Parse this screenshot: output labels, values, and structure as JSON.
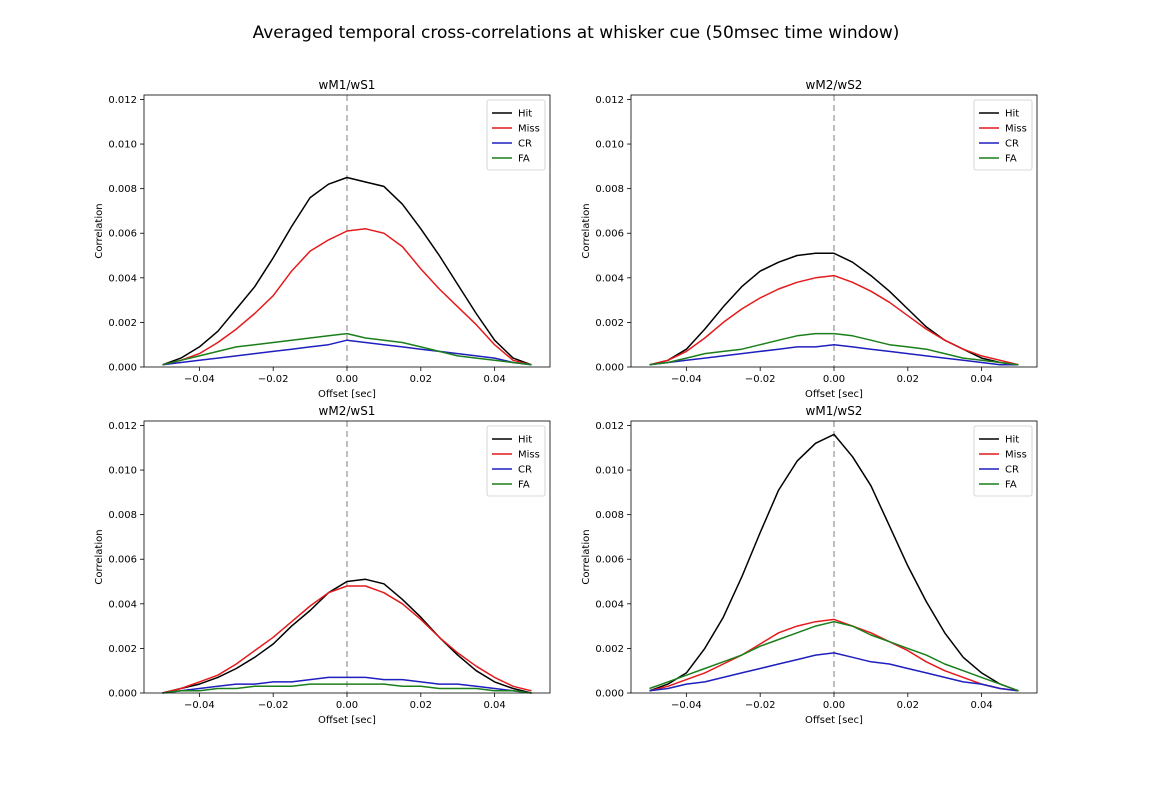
{
  "figure": {
    "title": "Averaged temporal cross-correlations at whisker cue (50msec time window)"
  },
  "colors": {
    "Hit": "#000000",
    "Miss": "#e41a1c",
    "CR": "#1f1fbf",
    "FA": "#1a7f1a",
    "zero_line": "#aaaaaa"
  },
  "chart_data": [
    {
      "type": "line",
      "title": "wM1/wS1",
      "xlabel": "Offset [sec]",
      "ylabel": "Correlation",
      "xlim": [
        -0.055,
        0.055
      ],
      "ylim": [
        0,
        0.0122
      ],
      "xticks": [
        -0.04,
        -0.02,
        0.0,
        0.02,
        0.04
      ],
      "xtick_labels": [
        "−0.04",
        "−0.02",
        "0.00",
        "0.02",
        "0.04"
      ],
      "yticks": [
        0,
        0.002,
        0.004,
        0.006,
        0.008,
        0.01,
        0.012
      ],
      "ytick_labels": [
        "0.000",
        "0.002",
        "0.004",
        "0.006",
        "0.008",
        "0.010",
        "0.012"
      ],
      "zero_line_x": 0,
      "legend": "top-right",
      "x": [
        -0.05,
        -0.045,
        -0.04,
        -0.035,
        -0.03,
        -0.025,
        -0.02,
        -0.015,
        -0.01,
        -0.005,
        0,
        0.005,
        0.01,
        0.015,
        0.02,
        0.025,
        0.03,
        0.035,
        0.04,
        0.045,
        0.05
      ],
      "series": [
        {
          "name": "Hit",
          "values": [
            0.0001,
            0.0004,
            0.0009,
            0.0016,
            0.0026,
            0.0036,
            0.0049,
            0.0063,
            0.0076,
            0.0082,
            0.0085,
            0.0083,
            0.0081,
            0.0073,
            0.0062,
            0.005,
            0.0037,
            0.0024,
            0.0012,
            0.0004,
            0.0001
          ]
        },
        {
          "name": "Miss",
          "values": [
            0.0001,
            0.0003,
            0.0006,
            0.0011,
            0.0017,
            0.0024,
            0.0032,
            0.0043,
            0.0052,
            0.0057,
            0.0061,
            0.0062,
            0.006,
            0.0054,
            0.0044,
            0.0035,
            0.0027,
            0.0019,
            0.001,
            0.0003,
            0.0001
          ]
        },
        {
          "name": "CR",
          "values": [
            0.0001,
            0.0002,
            0.0003,
            0.0004,
            0.0005,
            0.0006,
            0.0007,
            0.0008,
            0.0009,
            0.001,
            0.0012,
            0.0011,
            0.001,
            0.0009,
            0.0008,
            0.0007,
            0.0006,
            0.0005,
            0.0004,
            0.0002,
            0.0001
          ]
        },
        {
          "name": "FA",
          "values": [
            0.0001,
            0.0003,
            0.0005,
            0.0007,
            0.0009,
            0.001,
            0.0011,
            0.0012,
            0.0013,
            0.0014,
            0.0015,
            0.0013,
            0.0012,
            0.0011,
            0.0009,
            0.0007,
            0.0005,
            0.0004,
            0.0003,
            0.0002,
            0.0001
          ]
        }
      ]
    },
    {
      "type": "line",
      "title": "wM2/wS2",
      "xlabel": "Offset [sec]",
      "ylabel": "Correlation",
      "xlim": [
        -0.055,
        0.055
      ],
      "ylim": [
        0,
        0.0122
      ],
      "xticks": [
        -0.04,
        -0.02,
        0.0,
        0.02,
        0.04
      ],
      "xtick_labels": [
        "−0.04",
        "−0.02",
        "0.00",
        "0.02",
        "0.04"
      ],
      "yticks": [
        0,
        0.002,
        0.004,
        0.006,
        0.008,
        0.01,
        0.012
      ],
      "ytick_labels": [
        "0.000",
        "0.002",
        "0.004",
        "0.006",
        "0.008",
        "0.010",
        "0.012"
      ],
      "zero_line_x": 0,
      "legend": "top-right",
      "x": [
        -0.05,
        -0.045,
        -0.04,
        -0.035,
        -0.03,
        -0.025,
        -0.02,
        -0.015,
        -0.01,
        -0.005,
        0,
        0.005,
        0.01,
        0.015,
        0.02,
        0.025,
        0.03,
        0.035,
        0.04,
        0.045,
        0.05
      ],
      "series": [
        {
          "name": "Hit",
          "values": [
            0.0001,
            0.0003,
            0.0008,
            0.0017,
            0.0027,
            0.0036,
            0.0043,
            0.0047,
            0.005,
            0.0051,
            0.0051,
            0.0047,
            0.0041,
            0.0034,
            0.0026,
            0.0018,
            0.0012,
            0.0008,
            0.0004,
            0.0002,
            0.0001
          ]
        },
        {
          "name": "Miss",
          "values": [
            0.0001,
            0.0003,
            0.0007,
            0.0013,
            0.002,
            0.0026,
            0.0031,
            0.0035,
            0.0038,
            0.004,
            0.0041,
            0.0038,
            0.0034,
            0.0029,
            0.0023,
            0.0017,
            0.0012,
            0.0008,
            0.0005,
            0.0003,
            0.0001
          ]
        },
        {
          "name": "CR",
          "values": [
            0.0001,
            0.0002,
            0.0003,
            0.0004,
            0.0005,
            0.0006,
            0.0007,
            0.0008,
            0.0009,
            0.0009,
            0.001,
            0.0009,
            0.0008,
            0.0007,
            0.0006,
            0.0005,
            0.0004,
            0.0003,
            0.0002,
            0.0001,
            0.0001
          ]
        },
        {
          "name": "FA",
          "values": [
            0.0001,
            0.0002,
            0.0004,
            0.0006,
            0.0007,
            0.0008,
            0.001,
            0.0012,
            0.0014,
            0.0015,
            0.0015,
            0.0014,
            0.0012,
            0.001,
            0.0009,
            0.0008,
            0.0006,
            0.0004,
            0.0003,
            0.0002,
            0.0001
          ]
        }
      ]
    },
    {
      "type": "line",
      "title": "wM2/wS1",
      "xlabel": "Offset [sec]",
      "ylabel": "Correlation",
      "xlim": [
        -0.055,
        0.055
      ],
      "ylim": [
        0,
        0.0122
      ],
      "xticks": [
        -0.04,
        -0.02,
        0.0,
        0.02,
        0.04
      ],
      "xtick_labels": [
        "−0.04",
        "−0.02",
        "0.00",
        "0.02",
        "0.04"
      ],
      "yticks": [
        0,
        0.002,
        0.004,
        0.006,
        0.008,
        0.01,
        0.012
      ],
      "ytick_labels": [
        "0.000",
        "0.002",
        "0.004",
        "0.006",
        "0.008",
        "0.010",
        "0.012"
      ],
      "zero_line_x": 0,
      "legend": "top-right",
      "x": [
        -0.05,
        -0.045,
        -0.04,
        -0.035,
        -0.03,
        -0.025,
        -0.02,
        -0.015,
        -0.01,
        -0.005,
        0,
        0.005,
        0.01,
        0.015,
        0.02,
        0.025,
        0.03,
        0.035,
        0.04,
        0.045,
        0.05
      ],
      "series": [
        {
          "name": "Hit",
          "values": [
            0.0,
            0.0002,
            0.0004,
            0.0007,
            0.0011,
            0.0016,
            0.0022,
            0.003,
            0.0037,
            0.0045,
            0.005,
            0.0051,
            0.0049,
            0.0042,
            0.0034,
            0.0025,
            0.0017,
            0.001,
            0.0005,
            0.0002,
            0.0
          ]
        },
        {
          "name": "Miss",
          "values": [
            0.0,
            0.0002,
            0.0005,
            0.0008,
            0.0013,
            0.0019,
            0.0025,
            0.0032,
            0.0039,
            0.0045,
            0.0048,
            0.0048,
            0.0045,
            0.004,
            0.0033,
            0.0025,
            0.0018,
            0.0012,
            0.0007,
            0.0003,
            0.0001
          ]
        },
        {
          "name": "CR",
          "values": [
            0.0,
            0.0001,
            0.0002,
            0.0003,
            0.0004,
            0.0004,
            0.0005,
            0.0005,
            0.0006,
            0.0007,
            0.0007,
            0.0007,
            0.0006,
            0.0006,
            0.0005,
            0.0004,
            0.0004,
            0.0003,
            0.0002,
            0.0001,
            0.0
          ]
        },
        {
          "name": "FA",
          "values": [
            0.0,
            0.0001,
            0.0001,
            0.0002,
            0.0002,
            0.0003,
            0.0003,
            0.0003,
            0.0004,
            0.0004,
            0.0004,
            0.0004,
            0.0004,
            0.0003,
            0.0003,
            0.0002,
            0.0002,
            0.0002,
            0.0001,
            0.0001,
            0.0
          ]
        }
      ]
    },
    {
      "type": "line",
      "title": "wM1/wS2",
      "xlabel": "Offset [sec]",
      "ylabel": "Correlation",
      "xlim": [
        -0.055,
        0.055
      ],
      "ylim": [
        0,
        0.0122
      ],
      "xticks": [
        -0.04,
        -0.02,
        0.0,
        0.02,
        0.04
      ],
      "xtick_labels": [
        "−0.04",
        "−0.02",
        "0.00",
        "0.02",
        "0.04"
      ],
      "yticks": [
        0,
        0.002,
        0.004,
        0.006,
        0.008,
        0.01,
        0.012
      ],
      "ytick_labels": [
        "0.000",
        "0.002",
        "0.004",
        "0.006",
        "0.008",
        "0.010",
        "0.012"
      ],
      "zero_line_x": 0,
      "legend": "top-right",
      "x": [
        -0.05,
        -0.045,
        -0.04,
        -0.035,
        -0.03,
        -0.025,
        -0.02,
        -0.015,
        -0.01,
        -0.005,
        0,
        0.005,
        0.01,
        0.015,
        0.02,
        0.025,
        0.03,
        0.035,
        0.04,
        0.045,
        0.05
      ],
      "series": [
        {
          "name": "Hit",
          "values": [
            0.0001,
            0.0004,
            0.0009,
            0.002,
            0.0034,
            0.0052,
            0.0072,
            0.0091,
            0.0104,
            0.0112,
            0.0116,
            0.0106,
            0.0093,
            0.0075,
            0.0057,
            0.0041,
            0.0027,
            0.0016,
            0.0009,
            0.0004,
            0.0001
          ]
        },
        {
          "name": "Miss",
          "values": [
            0.0001,
            0.0003,
            0.0006,
            0.0009,
            0.0013,
            0.0017,
            0.0022,
            0.0027,
            0.003,
            0.0032,
            0.0033,
            0.003,
            0.0027,
            0.0023,
            0.0019,
            0.0014,
            0.001,
            0.0007,
            0.0004,
            0.0002,
            0.0001
          ]
        },
        {
          "name": "CR",
          "values": [
            0.0001,
            0.0002,
            0.0004,
            0.0005,
            0.0007,
            0.0009,
            0.0011,
            0.0013,
            0.0015,
            0.0017,
            0.0018,
            0.0016,
            0.0014,
            0.0013,
            0.0011,
            0.0009,
            0.0007,
            0.0005,
            0.0004,
            0.0002,
            0.0001
          ]
        },
        {
          "name": "FA",
          "values": [
            0.0002,
            0.0005,
            0.0008,
            0.0011,
            0.0014,
            0.0017,
            0.0021,
            0.0024,
            0.0027,
            0.003,
            0.0032,
            0.003,
            0.0026,
            0.0023,
            0.002,
            0.0017,
            0.0013,
            0.001,
            0.0007,
            0.0004,
            0.0001
          ]
        }
      ]
    }
  ]
}
